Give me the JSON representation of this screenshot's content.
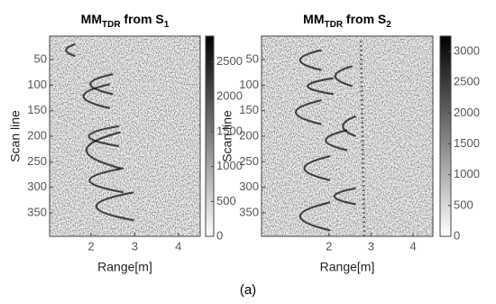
{
  "chart_data": [
    {
      "type": "heatmap",
      "title": [
        {
          "text": "MM",
          "sub": false
        },
        {
          "text": "TDR",
          "sub": true
        },
        {
          "text": " from S",
          "sub": false
        },
        {
          "text": "1",
          "sub": true
        }
      ],
      "xlabel": "Range[m]",
      "ylabel": "Scan line",
      "xlim": [
        1.05,
        4.5
      ],
      "xticks": [
        2,
        3,
        4
      ],
      "ylim": [
        4,
        396
      ],
      "yticks": [
        50,
        100,
        150,
        200,
        250,
        300,
        350
      ],
      "clim": [
        0,
        2870
      ],
      "cticks": [
        0,
        500,
        1000,
        1500,
        2000,
        2500
      ]
    },
    {
      "type": "heatmap",
      "title": [
        {
          "text": "MM",
          "sub": false
        },
        {
          "text": "TDR",
          "sub": true
        },
        {
          "text": " from S",
          "sub": false
        },
        {
          "text": "2",
          "sub": true
        }
      ],
      "xlabel": "Range[m]",
      "ylabel": "Scan line",
      "xlim": [
        0.4,
        4.47
      ],
      "xticks": [
        2,
        3,
        4
      ],
      "ylim": [
        4,
        396
      ],
      "yticks": [
        50,
        100,
        150,
        200,
        250,
        300,
        350
      ],
      "clim": [
        0,
        3250
      ],
      "cticks": [
        0,
        500,
        1000,
        1500,
        2000,
        2500,
        3000
      ]
    }
  ],
  "caption": "(a)"
}
